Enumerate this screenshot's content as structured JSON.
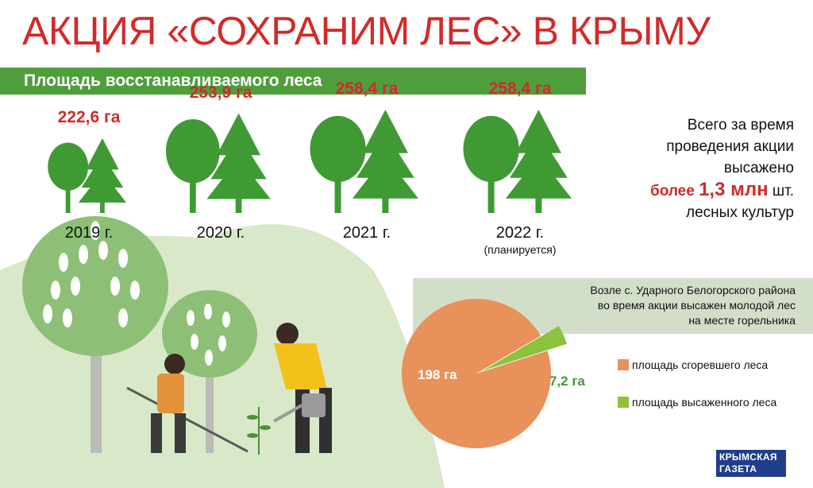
{
  "title": "АКЦИЯ «СОХРАНИМ ЛЕС» В КРЫМУ",
  "section_banner": "Площадь восстанавливаемого леса",
  "chart_data": [
    {
      "type": "bar",
      "categories": [
        "2019 г.",
        "2020 г.",
        "2021 г.",
        "2022 г."
      ],
      "values": [
        222.6,
        253.9,
        258.4,
        258.4
      ],
      "value_labels": [
        "222,6 га",
        "253,9 га",
        "258,4 га",
        "258,4 га"
      ],
      "notes": [
        "",
        "",
        "",
        "(планируется)"
      ],
      "unit": "га"
    },
    {
      "type": "pie",
      "categories": [
        "площадь сгоревшего леса",
        "площадь высаженного леса"
      ],
      "values": [
        198,
        7.2
      ],
      "value_labels": [
        "198 га",
        "7,2 га"
      ],
      "colors": [
        "#e8915a",
        "#8dc23c"
      ],
      "legend_position": "right"
    }
  ],
  "total": {
    "line1": "Всего за время",
    "line2": "проведения акции",
    "line3": "высажено",
    "prefix": "более",
    "value": "1,3 млн",
    "suffix": "шт.",
    "line5": "лесных культур"
  },
  "pie_note": {
    "line1": "Возле с. Ударного Белогорского района",
    "line2": "во время акции высажен молодой лес",
    "line3": "на месте горельника"
  },
  "logo": {
    "line1": "КРЫМСКАЯ",
    "line2": "ГАЗЕТА"
  },
  "colors": {
    "accent_red": "#d22a2a",
    "banner_green": "#4f9e3c",
    "tree_green": "#3f9a34",
    "pie_orange": "#e8915a",
    "pie_green": "#8dc23c"
  }
}
